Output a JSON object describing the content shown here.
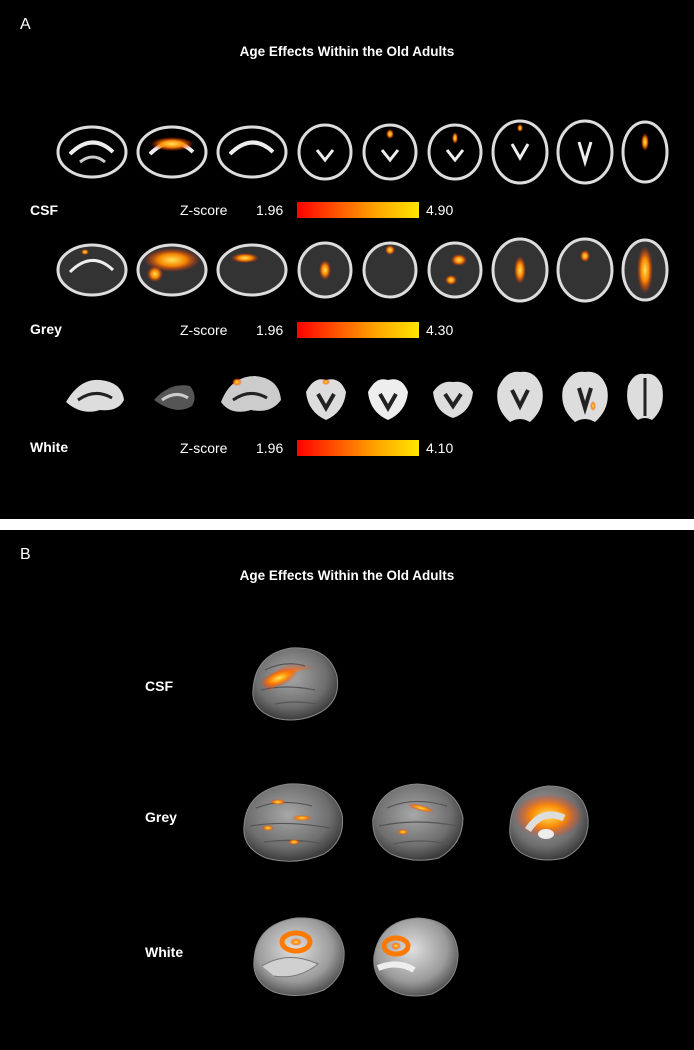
{
  "panel_a": {
    "letter": "A",
    "title": "Age Effects Within the Old Adults",
    "rows": [
      {
        "label": "CSF",
        "zscore_label": "Z-score",
        "zmin": "1.96",
        "zmax": "4.90"
      },
      {
        "label": "Grey",
        "zscore_label": "Z-score",
        "zmin": "1.96",
        "zmax": "4.30"
      },
      {
        "label": "White",
        "zscore_label": "Z-score",
        "zmin": "1.96",
        "zmax": "4.10"
      }
    ]
  },
  "panel_b": {
    "letter": "B",
    "title": "Age Effects Within the Old Adults",
    "rows": [
      {
        "label": "CSF"
      },
      {
        "label": "Grey"
      },
      {
        "label": "White"
      }
    ]
  },
  "colors": {
    "background": "#000000",
    "colorbar_low": "#ff0000",
    "colorbar_high": "#ffe600"
  }
}
